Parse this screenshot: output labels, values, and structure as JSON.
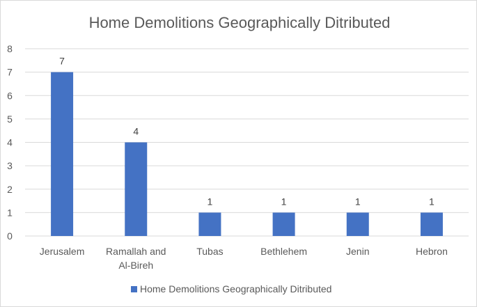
{
  "chart_data": {
    "type": "bar",
    "title": "Home Demolitions Geographically Ditributed",
    "categories": [
      [
        "Jerusalem"
      ],
      [
        "Ramallah and",
        "Al-Bireh"
      ],
      [
        "Tubas"
      ],
      [
        "Bethlehem"
      ],
      [
        "Jenin"
      ],
      [
        "Hebron"
      ]
    ],
    "series": [
      {
        "name": "Home Demolitions Geographically Ditributed",
        "values": [
          7,
          4,
          1,
          1,
          1,
          1
        ],
        "color": "#4472C4"
      }
    ],
    "ylim": [
      0,
      8
    ],
    "yticks": [
      0,
      1,
      2,
      3,
      4,
      5,
      6,
      7,
      8
    ],
    "grid": true,
    "data_labels": true,
    "legend_position": "bottom",
    "xlabel": "",
    "ylabel": ""
  }
}
